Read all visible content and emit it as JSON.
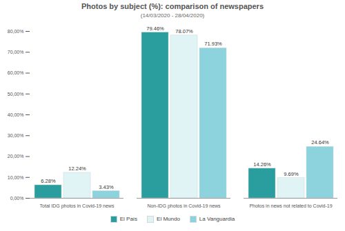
{
  "chart_data": {
    "type": "bar",
    "title": "Photos by subject (%): comparison of newspapers",
    "subtitle": "(14/03/2020 - 28/04/2020)",
    "categories": [
      "Total IDG photos in Covid-19 news",
      "Non-IDG photos in Covid-19 news",
      "Photos in news not related to Covid-19"
    ],
    "series": [
      {
        "name": "El País",
        "color": "#2a9d9e",
        "values": [
          6.28,
          79.46,
          14.26
        ],
        "value_labels": [
          "6.28%",
          "79.46%",
          "14.26%"
        ]
      },
      {
        "name": "El Mundo",
        "color": "#e0f3f5",
        "values": [
          12.24,
          78.07,
          9.69
        ],
        "value_labels": [
          "12.24%",
          "78.07%",
          "9.69%"
        ]
      },
      {
        "name": "La Vanguardia",
        "color": "#8dd3de",
        "values": [
          3.43,
          71.93,
          24.64
        ],
        "value_labels": [
          "3.43%",
          "71.93%",
          "24.64%"
        ]
      }
    ],
    "ylim": [
      0,
      80
    ],
    "yticks": [
      {
        "value": 0,
        "label": "0,00%"
      },
      {
        "value": 10,
        "label": "10,00%"
      },
      {
        "value": 20,
        "label": "20,00%"
      },
      {
        "value": 30,
        "label": "30,00%"
      },
      {
        "value": 40,
        "label": "40,00%"
      },
      {
        "value": 50,
        "label": "50,00%"
      },
      {
        "value": 60,
        "label": "60,00%"
      },
      {
        "value": 70,
        "label": "70,00%"
      },
      {
        "value": 80,
        "label": "80,00%"
      }
    ],
    "grid": false,
    "data_labels": true,
    "legend": "bottom"
  }
}
